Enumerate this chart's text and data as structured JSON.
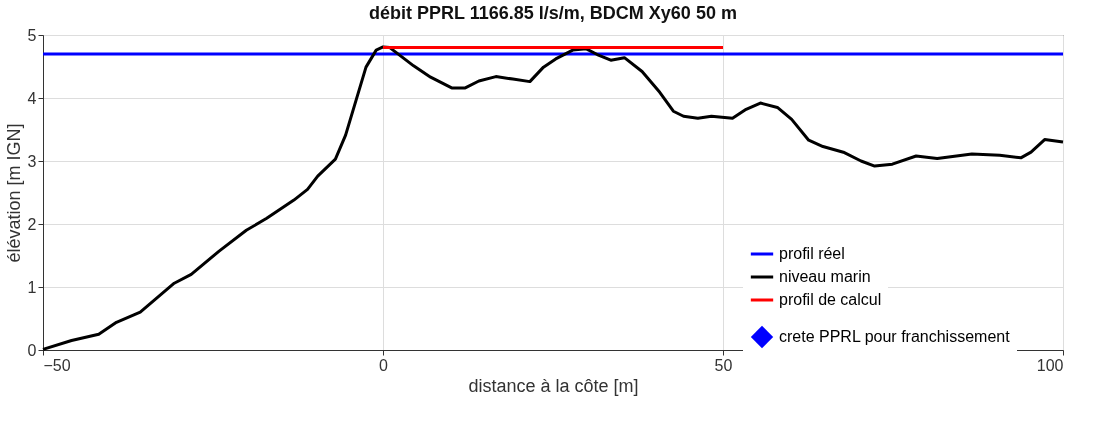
{
  "chart_data": {
    "type": "line",
    "title": "débit PPRL 1166.85 l/s/m, BDCM Xy60 50 m",
    "xlabel": "distance à la côte [m]",
    "ylabel": "élévation [m IGN]",
    "xlim": [
      -50,
      100
    ],
    "xticks": [
      -50,
      0,
      50,
      100
    ],
    "ylim": [
      0,
      5
    ],
    "yticks": [
      0,
      1,
      2,
      3,
      4,
      5
    ],
    "grid": true,
    "legend": "bottom right",
    "line_style": "solid",
    "series": [
      {
        "name": "profil réel",
        "color": "#0000ff",
        "x": [
          -50,
          100
        ],
        "values": [
          4.7,
          4.7
        ]
      },
      {
        "name": "niveau marin",
        "color": "#000000",
        "x": [
          -50,
          -45.8,
          -41.8,
          -39.2,
          -35.7,
          -30.7,
          -28.2,
          -24.1,
          -20.1,
          -17.1,
          -13.1,
          -11.1,
          -9.6,
          -7.0,
          -5.5,
          -4.0,
          -2.5,
          -1.0,
          0,
          1.0,
          4.5,
          7.0,
          10.1,
          12.1,
          14.1,
          16.6,
          19.1,
          21.6,
          23.6,
          25.4,
          27.9,
          29.9,
          31.5,
          33.5,
          35.5,
          38.1,
          40.7,
          42.7,
          44.2,
          46.3,
          48.3,
          51.4,
          53.4,
          55.5,
          58.0,
          60.1,
          62.6,
          64.7,
          67.7,
          70.3,
          72.3,
          74.9,
          78.4,
          81.5,
          86.6,
          90.7,
          93.8,
          95.3,
          97.3,
          100
        ],
        "values": [
          0.01,
          0.15,
          0.25,
          0.44,
          0.6,
          1.06,
          1.2,
          1.57,
          1.9,
          2.09,
          2.38,
          2.55,
          2.76,
          3.03,
          3.41,
          3.95,
          4.49,
          4.76,
          4.81,
          4.8,
          4.51,
          4.33,
          4.16,
          4.16,
          4.27,
          4.34,
          4.3,
          4.26,
          4.49,
          4.62,
          4.76,
          4.78,
          4.69,
          4.6,
          4.64,
          4.42,
          4.09,
          3.79,
          3.71,
          3.68,
          3.71,
          3.68,
          3.82,
          3.92,
          3.85,
          3.66,
          3.33,
          3.23,
          3.14,
          3.0,
          2.92,
          2.95,
          3.08,
          3.04,
          3.11,
          3.09,
          3.05,
          3.14,
          3.34,
          3.3
        ]
      },
      {
        "name": "profil de calcul",
        "color": "#ff0000",
        "x": [
          0,
          50
        ],
        "values": [
          4.8,
          4.8
        ]
      },
      {
        "name": "crete PPRL pour franchissement",
        "color": "#0000ff",
        "type": "scatter",
        "marker": "diamond"
      }
    ]
  }
}
